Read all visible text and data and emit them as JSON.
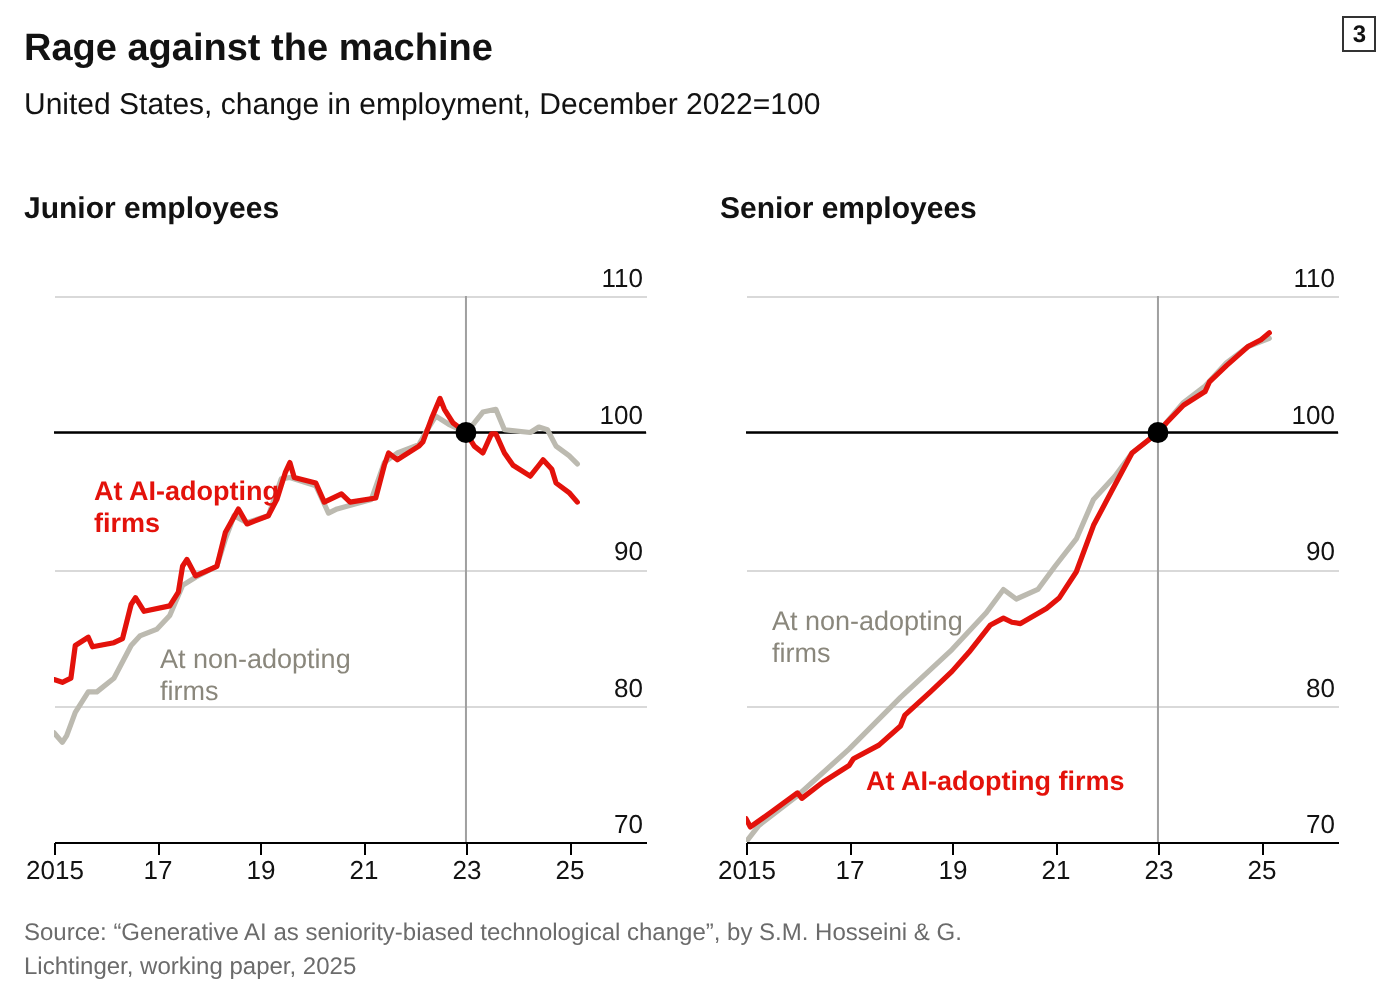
{
  "chart_data": [
    {
      "type": "line",
      "title": "Junior employees",
      "annotations": [
        "Rage against the machine",
        "United States, change in employment, December 2022=100",
        "3",
        "Source: “Generative AI as seniority-biased technological change”, by S.M. Hosseini & G. Lichtinger, working paper, 2025"
      ],
      "xlim": [
        "2015-01",
        "2026-07"
      ],
      "xticks": [
        {
          "value": "2015-01",
          "label": "2015"
        },
        {
          "value": "2017-01",
          "label": "17"
        },
        {
          "value": "2019-01",
          "label": "19"
        },
        {
          "value": "2021-01",
          "label": "21"
        },
        {
          "value": "2023-01",
          "label": "23"
        },
        {
          "value": "2025-01",
          "label": "25"
        }
      ],
      "ylim": [
        70,
        110
      ],
      "yticks": [
        70,
        80,
        90,
        100,
        110
      ],
      "grid": "y",
      "legend": false,
      "ref_lines": [
        {
          "axis": "y",
          "value": 100,
          "color": "#000000"
        },
        {
          "axis": "x",
          "value": "2023-01",
          "color": "#a0a0a0"
        }
      ],
      "series": [
        {
          "name": "At non-adopting firms",
          "color": "#bcbab0",
          "x": [
            "2015-01",
            "2015-03",
            "2015-04",
            "2015-06",
            "2015-09",
            "2015-11",
            "2016-03",
            "2016-07",
            "2016-09",
            "2017-01",
            "2017-04",
            "2017-07",
            "2017-10",
            "2018-03",
            "2018-05",
            "2018-07",
            "2018-10",
            "2019-03",
            "2019-06",
            "2019-08",
            "2020-02",
            "2020-05",
            "2020-07",
            "2021-03",
            "2021-06",
            "2021-09",
            "2022-02",
            "2022-04",
            "2022-06",
            "2022-09",
            "2023-01",
            "2023-03",
            "2023-05",
            "2023-08",
            "2023-10",
            "2024-04",
            "2024-06",
            "2024-08",
            "2024-10",
            "2025-01",
            "2025-03"
          ],
          "values": [
            78.0,
            77.3,
            77.8,
            79.5,
            81.0,
            81.0,
            82.0,
            84.4,
            85.1,
            85.6,
            86.6,
            88.8,
            89.4,
            90.2,
            92.2,
            93.9,
            93.4,
            93.9,
            96.6,
            96.7,
            96.1,
            94.1,
            94.4,
            95.1,
            97.8,
            98.5,
            99.1,
            100.2,
            101.2,
            100.6,
            100,
            100.7,
            101.5,
            101.7,
            100.2,
            100,
            100.4,
            100.2,
            99.0,
            98.3,
            97.7
          ]
        },
        {
          "name": "At AI-adopting firms",
          "color": "#e3120b",
          "x": [
            "2015-01",
            "2015-03",
            "2015-05",
            "2015-06",
            "2015-09",
            "2015-10",
            "2016-03",
            "2016-05",
            "2016-07",
            "2016-08",
            "2016-10",
            "2017-04",
            "2017-06",
            "2017-07",
            "2017-08",
            "2017-10",
            "2018-03",
            "2018-05",
            "2018-08",
            "2018-10",
            "2019-03",
            "2019-05",
            "2019-07",
            "2019-08",
            "2019-09",
            "2020-02",
            "2020-04",
            "2020-08",
            "2020-10",
            "2021-04",
            "2021-06",
            "2021-07",
            "2021-09",
            "2022-02",
            "2022-03",
            "2022-05",
            "2022-07",
            "2022-08",
            "2022-10",
            "2023-01",
            "2023-03",
            "2023-05",
            "2023-07",
            "2023-08",
            "2023-10",
            "2023-12",
            "2024-04",
            "2024-06",
            "2024-07",
            "2024-09",
            "2024-10",
            "2025-01",
            "2025-03"
          ],
          "values": [
            81.9,
            81.7,
            82.0,
            84.4,
            85.0,
            84.3,
            84.6,
            84.9,
            87.4,
            87.9,
            86.9,
            87.3,
            88.3,
            90.2,
            90.7,
            89.5,
            90.2,
            92.7,
            94.4,
            93.3,
            93.9,
            95.1,
            97.1,
            97.8,
            96.7,
            96.3,
            94.9,
            95.5,
            94.9,
            95.2,
            97.6,
            98.5,
            98.0,
            99.0,
            99.3,
            101.0,
            102.5,
            101.7,
            100.7,
            100,
            99.0,
            98.5,
            99.9,
            99.9,
            98.5,
            97.6,
            96.8,
            97.6,
            98.0,
            97.3,
            96.3,
            95.6,
            94.9
          ]
        },
        {
          "type": "scatter",
          "color": "#000000",
          "x": [
            "2023-01"
          ],
          "values": [
            100
          ]
        }
      ]
    },
    {
      "type": "line",
      "title": "Senior employees",
      "xlim": [
        "2015-01",
        "2026-07"
      ],
      "xticks": [
        {
          "value": "2015-01",
          "label": "2015"
        },
        {
          "value": "2017-01",
          "label": "17"
        },
        {
          "value": "2019-01",
          "label": "19"
        },
        {
          "value": "2021-01",
          "label": "21"
        },
        {
          "value": "2023-01",
          "label": "23"
        },
        {
          "value": "2025-01",
          "label": "25"
        }
      ],
      "ylim": [
        70,
        110
      ],
      "yticks": [
        70,
        80,
        90,
        100,
        110
      ],
      "grid": "y",
      "legend": false,
      "ref_lines": [
        {
          "axis": "y",
          "value": 100,
          "color": "#000000"
        },
        {
          "axis": "x",
          "value": "2023-01",
          "color": "#a0a0a0"
        }
      ],
      "series": [
        {
          "name": "At non-adopting firms",
          "color": "#bcbab0",
          "x": [
            "2015-01",
            "2015-04",
            "2016-01",
            "2017-01",
            "2018-01",
            "2019-01",
            "2019-09",
            "2020-01",
            "2020-04",
            "2020-09",
            "2021-01",
            "2021-06",
            "2021-10",
            "2022-03",
            "2022-07",
            "2023-01",
            "2023-07",
            "2023-12",
            "2024-05",
            "2024-10",
            "2025-03"
          ],
          "values": [
            70.0,
            71.2,
            73.4,
            76.8,
            80.6,
            84.1,
            86.8,
            88.5,
            87.8,
            88.5,
            90.2,
            92.2,
            95.1,
            96.8,
            98.5,
            100,
            102.2,
            103.4,
            105.1,
            106.3,
            106.9
          ]
        },
        {
          "name": "At AI-adopting firms",
          "color": "#e3120b",
          "x": [
            "2015-01",
            "2015-02",
            "2015-07",
            "2016-01",
            "2016-02",
            "2016-07",
            "2017-01",
            "2017-02",
            "2017-08",
            "2018-01",
            "2018-02",
            "2018-08",
            "2019-01",
            "2019-05",
            "2019-10",
            "2020-01",
            "2020-03",
            "2020-05",
            "2020-11",
            "2021-02",
            "2021-06",
            "2021-10",
            "2022-02",
            "2022-07",
            "2023-01",
            "2023-03",
            "2023-07",
            "2023-12",
            "2024-01",
            "2024-05",
            "2024-10",
            "2025-01",
            "2025-03"
          ],
          "values": [
            71.7,
            71.1,
            72.2,
            73.6,
            73.2,
            74.4,
            75.6,
            76.1,
            77.1,
            78.5,
            79.3,
            81.0,
            82.5,
            83.9,
            85.9,
            86.4,
            86.1,
            86.0,
            87.1,
            87.9,
            89.8,
            93.2,
            95.6,
            98.5,
            100,
            100.7,
            102.0,
            103.0,
            103.7,
            104.9,
            106.3,
            106.8,
            107.3
          ]
        },
        {
          "type": "scatter",
          "color": "#000000",
          "x": [
            "2023-01"
          ],
          "values": [
            100
          ]
        }
      ]
    }
  ]
}
